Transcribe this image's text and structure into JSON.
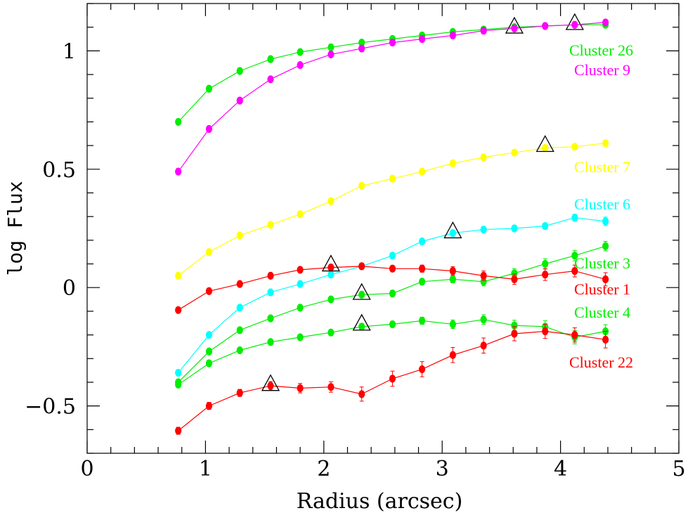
{
  "chart_data": {
    "type": "line",
    "title": "",
    "xlabel": "Radius (arcsec)",
    "ylabel": "log Flux",
    "xlim": [
      0,
      5
    ],
    "ylim": [
      -0.7,
      1.2
    ],
    "x_ticks": [
      0,
      1,
      2,
      3,
      4,
      5
    ],
    "x_tick_labels": [
      "0",
      "1",
      "2",
      "3",
      "4",
      "5"
    ],
    "y_ticks": [
      -0.5,
      0,
      0.5,
      1
    ],
    "y_tick_labels": [
      "−0.5",
      "0",
      "0.5",
      "1"
    ],
    "grid": false,
    "x": [
      0.77,
      1.03,
      1.29,
      1.55,
      1.8,
      2.06,
      2.32,
      2.58,
      2.83,
      3.09,
      3.35,
      3.61,
      3.87,
      4.12,
      4.38
    ],
    "series": [
      {
        "name": "Cluster 26",
        "color": "#00ee00",
        "values": [
          0.7,
          0.84,
          0.915,
          0.965,
          0.995,
          1.015,
          1.035,
          1.05,
          1.065,
          1.08,
          1.09,
          1.1,
          1.105,
          1.11,
          1.11
        ],
        "errors": [
          0.008,
          0.008,
          0.008,
          0.008,
          0.008,
          0.008,
          0.008,
          0.008,
          0.008,
          0.008,
          0.008,
          0.008,
          0.008,
          0.008,
          0.008
        ],
        "marker_x": [
          3.61,
          4.12
        ],
        "marker_y": [
          1.1,
          1.115
        ]
      },
      {
        "name": "Cluster 9",
        "color": "#ff00ff",
        "values": [
          0.49,
          0.67,
          0.79,
          0.88,
          0.94,
          0.985,
          1.01,
          1.035,
          1.05,
          1.065,
          1.085,
          1.095,
          1.105,
          1.11,
          1.12
        ],
        "errors": [
          0.008,
          0.008,
          0.008,
          0.008,
          0.008,
          0.008,
          0.008,
          0.008,
          0.008,
          0.008,
          0.008,
          0.008,
          0.008,
          0.008,
          0.008
        ],
        "marker_x": [],
        "marker_y": []
      },
      {
        "name": "Cluster 7",
        "color": "#ffff00",
        "values": [
          0.05,
          0.15,
          0.22,
          0.265,
          0.31,
          0.365,
          0.43,
          0.46,
          0.49,
          0.525,
          0.55,
          0.57,
          0.59,
          0.595,
          0.61
        ],
        "errors": [
          0.008,
          0.008,
          0.008,
          0.008,
          0.008,
          0.008,
          0.008,
          0.008,
          0.008,
          0.008,
          0.008,
          0.008,
          0.008,
          0.008,
          0.01
        ],
        "marker_x": [
          3.87
        ],
        "marker_y": [
          0.6
        ]
      },
      {
        "name": "Cluster 6",
        "color": "#00ffff",
        "values": [
          -0.36,
          -0.2,
          -0.085,
          -0.02,
          0.015,
          0.055,
          0.09,
          0.135,
          0.195,
          0.23,
          0.245,
          0.25,
          0.26,
          0.295,
          0.28
        ],
        "errors": [
          0.01,
          0.01,
          0.01,
          0.01,
          0.01,
          0.01,
          0.01,
          0.01,
          0.01,
          0.01,
          0.012,
          0.012,
          0.012,
          0.015,
          0.018
        ],
        "marker_x": [
          3.09
        ],
        "marker_y": [
          0.235
        ]
      },
      {
        "name": "Cluster 3",
        "color": "#00ee00",
        "values": [
          -0.4,
          -0.27,
          -0.18,
          -0.13,
          -0.085,
          -0.05,
          -0.03,
          -0.025,
          0.025,
          0.035,
          0.025,
          0.06,
          0.1,
          0.135,
          0.175
        ],
        "errors": [
          0.01,
          0.01,
          0.01,
          0.01,
          0.01,
          0.01,
          0.01,
          0.012,
          0.012,
          0.015,
          0.018,
          0.02,
          0.022,
          0.022,
          0.02
        ],
        "marker_x": [
          2.32
        ],
        "marker_y": [
          -0.025
        ]
      },
      {
        "name": "Cluster 1",
        "color": "#ff0000",
        "values": [
          -0.095,
          -0.015,
          0.015,
          0.05,
          0.075,
          0.085,
          0.09,
          0.08,
          0.08,
          0.07,
          0.05,
          0.035,
          0.055,
          0.07,
          0.035
        ],
        "errors": [
          0.01,
          0.01,
          0.01,
          0.01,
          0.01,
          0.01,
          0.012,
          0.012,
          0.015,
          0.018,
          0.02,
          0.022,
          0.025,
          0.025,
          0.028
        ],
        "marker_x": [
          2.06
        ],
        "marker_y": [
          0.095
        ]
      },
      {
        "name": "Cluster 4",
        "color": "#00ee00",
        "values": [
          -0.41,
          -0.32,
          -0.265,
          -0.23,
          -0.21,
          -0.19,
          -0.165,
          -0.155,
          -0.14,
          -0.155,
          -0.135,
          -0.16,
          -0.165,
          -0.21,
          -0.185
        ],
        "errors": [
          0.01,
          0.01,
          0.01,
          0.01,
          0.01,
          0.01,
          0.012,
          0.012,
          0.015,
          0.018,
          0.02,
          0.022,
          0.025,
          0.028,
          0.028
        ],
        "marker_x": [
          2.32
        ],
        "marker_y": [
          -0.155
        ]
      },
      {
        "name": "Cluster 22",
        "color": "#ff0000",
        "values": [
          -0.605,
          -0.5,
          -0.445,
          -0.415,
          -0.425,
          -0.42,
          -0.45,
          -0.385,
          -0.345,
          -0.285,
          -0.245,
          -0.195,
          -0.185,
          -0.2,
          -0.22
        ],
        "errors": [
          0.015,
          0.015,
          0.015,
          0.018,
          0.02,
          0.022,
          0.03,
          0.032,
          0.032,
          0.032,
          0.032,
          0.03,
          0.03,
          0.03,
          0.035
        ],
        "marker_x": [
          1.55
        ],
        "marker_y": [
          -0.41
        ]
      }
    ]
  },
  "labels": {
    "cluster26": "Cluster 26",
    "cluster9": "Cluster 9",
    "cluster7": "Cluster 7",
    "cluster6": "Cluster 6",
    "cluster3": "Cluster 3",
    "cluster1": "Cluster 1",
    "cluster4": "Cluster 4",
    "cluster22": "Cluster 22"
  },
  "colors": {
    "green": "#00ee00",
    "magenta": "#ff00ff",
    "yellow": "#ffff00",
    "cyan": "#00ffff",
    "red": "#ff0000"
  }
}
